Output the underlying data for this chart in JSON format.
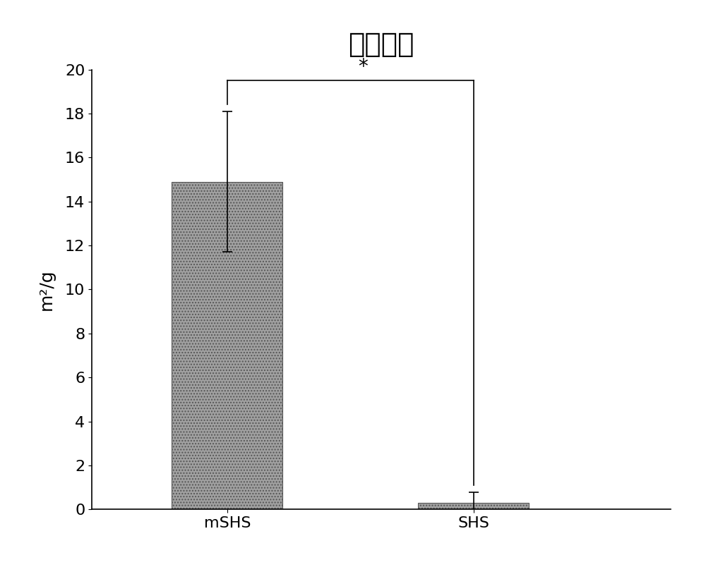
{
  "title": "比表面积",
  "ylabel": "m²/g",
  "categories": [
    "mSHS",
    "SHS"
  ],
  "values": [
    14.9,
    0.3
  ],
  "errors": [
    3.2,
    0.5
  ],
  "bar_color": "#a0a0a0",
  "bar_hatch": "....",
  "ylim": [
    0,
    20
  ],
  "yticks": [
    0,
    2,
    4,
    6,
    8,
    10,
    12,
    14,
    16,
    18,
    20
  ],
  "significance_label": "*",
  "title_fontsize": 28,
  "label_fontsize": 18,
  "tick_fontsize": 16,
  "bar_width": 0.45,
  "figsize": [
    10.0,
    8.21
  ],
  "dpi": 100,
  "background_color": "#ffffff",
  "edge_color": "#555555"
}
